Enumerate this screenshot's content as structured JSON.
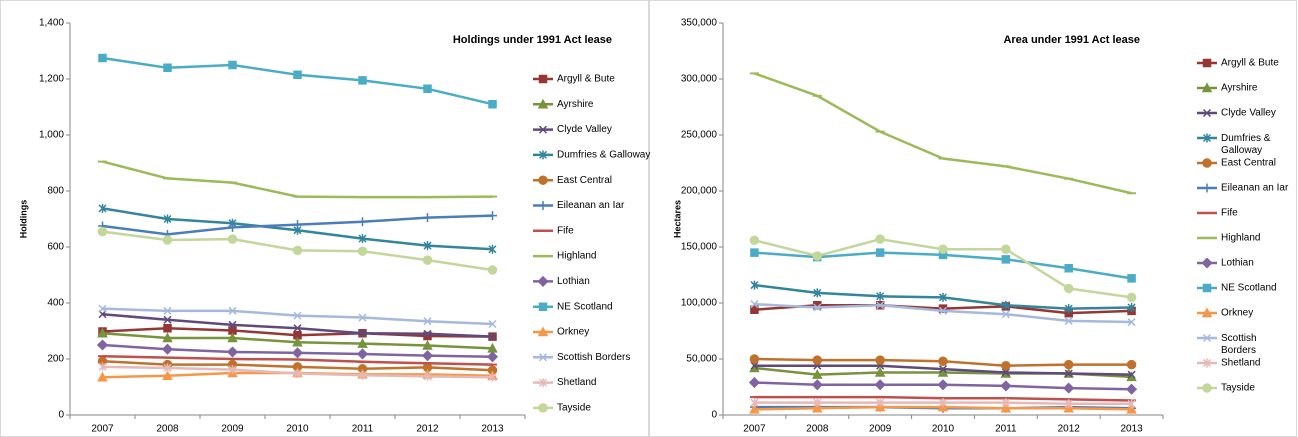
{
  "chart_data": [
    {
      "type": "line",
      "title": "Holdings under 1991 Act lease",
      "y_label": "Holdings",
      "categories": [
        "2007",
        "2008",
        "2009",
        "2010",
        "2011",
        "2012",
        "2013"
      ],
      "ylim": [
        0,
        1400
      ],
      "yticks": [
        0,
        200,
        400,
        600,
        800,
        {
          "value": 1000,
          "label": "1,000"
        },
        {
          "value": 1200,
          "label": "1,200"
        },
        {
          "value": 1400,
          "label": "1,400"
        }
      ],
      "series": [
        {
          "name": "Argyll & Bute",
          "color": "#953735",
          "marker": "square",
          "values": [
            298,
            310,
            302,
            285,
            292,
            282,
            280
          ]
        },
        {
          "name": "Ayrshire",
          "color": "#77933c",
          "marker": "triangle",
          "values": [
            292,
            275,
            275,
            260,
            255,
            248,
            238
          ]
        },
        {
          "name": "Clyde Valley",
          "color": "#604a7b",
          "marker": "x",
          "values": [
            360,
            340,
            322,
            310,
            292,
            290,
            280
          ]
        },
        {
          "name": "Dumfries & Galloway",
          "color": "#31859c",
          "marker": "star",
          "values": [
            738,
            700,
            685,
            660,
            630,
            605,
            592
          ]
        },
        {
          "name": "East Central",
          "color": "#c0722c",
          "marker": "circle",
          "values": [
            192,
            180,
            180,
            172,
            165,
            170,
            160
          ]
        },
        {
          "name": "Eileanan an Iar",
          "color": "#4a7ebb",
          "marker": "plus",
          "values": [
            675,
            645,
            670,
            680,
            690,
            705,
            712
          ]
        },
        {
          "name": "Fife",
          "color": "#c0504d",
          "marker": "dash",
          "values": [
            210,
            205,
            200,
            198,
            190,
            185,
            180
          ]
        },
        {
          "name": "Highland",
          "color": "#9bbb59",
          "marker": "dash",
          "values": [
            905,
            845,
            830,
            780,
            778,
            778,
            780
          ]
        },
        {
          "name": "Lothian",
          "color": "#8064a2",
          "marker": "diamond",
          "values": [
            250,
            235,
            225,
            222,
            218,
            212,
            208
          ]
        },
        {
          "name": "NE Scotland",
          "color": "#4bacc6",
          "marker": "square",
          "values": [
            1275,
            1240,
            1250,
            1215,
            1195,
            1165,
            1110
          ]
        },
        {
          "name": "Orkney",
          "color": "#f79646",
          "marker": "triangle",
          "values": [
            135,
            140,
            150,
            150,
            145,
            145,
            140
          ]
        },
        {
          "name": "Scottish Borders",
          "color": "#a6b9dc",
          "marker": "x",
          "values": [
            380,
            372,
            372,
            355,
            348,
            335,
            325
          ]
        },
        {
          "name": "Shetland",
          "color": "#e6b9b8",
          "marker": "star",
          "values": [
            172,
            168,
            162,
            148,
            142,
            138,
            135
          ]
        },
        {
          "name": "Tayside",
          "color": "#c3d69b",
          "marker": "circle",
          "values": [
            655,
            625,
            628,
            588,
            585,
            553,
            518
          ]
        }
      ]
    },
    {
      "type": "line",
      "title": "Area under 1991 Act lease",
      "y_label": "Hectares",
      "categories": [
        "2007",
        "2008",
        "2009",
        "2010",
        "2011",
        "2012",
        "2013"
      ],
      "ylim": [
        0,
        350000
      ],
      "yticks": [
        0,
        {
          "value": 50000,
          "label": "50,000"
        },
        {
          "value": 100000,
          "label": "100,000"
        },
        {
          "value": 150000,
          "label": "150,000"
        },
        {
          "value": 200000,
          "label": "200,000"
        },
        {
          "value": 250000,
          "label": "250,000"
        },
        {
          "value": 300000,
          "label": "300,000"
        },
        {
          "value": 350000,
          "label": "350,000"
        }
      ],
      "series": [
        {
          "name": "Argyll & Bute",
          "color": "#953735",
          "marker": "square",
          "values": [
            94000,
            98000,
            98000,
            95000,
            97000,
            91000,
            93000
          ]
        },
        {
          "name": "Ayrshire",
          "color": "#77933c",
          "marker": "triangle",
          "values": [
            42000,
            36000,
            38000,
            38000,
            37000,
            37000,
            34000
          ]
        },
        {
          "name": "Clyde Valley",
          "color": "#604a7b",
          "marker": "x",
          "values": [
            44000,
            44000,
            44000,
            41000,
            38000,
            37000,
            36000
          ]
        },
        {
          "name": "Dumfries & Galloway",
          "color": "#31859c",
          "marker": "star",
          "values": [
            116000,
            109000,
            106000,
            105000,
            98000,
            95000,
            96000
          ]
        },
        {
          "name": "East Central",
          "color": "#c0722c",
          "marker": "circle",
          "values": [
            50000,
            49000,
            49000,
            48000,
            44000,
            45000,
            45000
          ]
        },
        {
          "name": "Eileanan an Iar",
          "color": "#4a7ebb",
          "marker": "plus",
          "values": [
            7000,
            7000,
            7000,
            6000,
            6000,
            7000,
            6000
          ]
        },
        {
          "name": "Fife",
          "color": "#c0504d",
          "marker": "dash",
          "values": [
            16000,
            16000,
            16000,
            15000,
            15000,
            14000,
            13000
          ]
        },
        {
          "name": "Highland",
          "color": "#9bbb59",
          "marker": "dash",
          "values": [
            305000,
            285000,
            253000,
            229000,
            222000,
            211000,
            198000
          ]
        },
        {
          "name": "Lothian",
          "color": "#8064a2",
          "marker": "diamond",
          "values": [
            29000,
            27000,
            27000,
            27000,
            26000,
            24000,
            23000
          ]
        },
        {
          "name": "NE Scotland",
          "color": "#4bacc6",
          "marker": "square",
          "values": [
            145000,
            141000,
            145000,
            143000,
            139000,
            131000,
            122000
          ]
        },
        {
          "name": "Orkney",
          "color": "#f79646",
          "marker": "triangle",
          "values": [
            5000,
            6000,
            7000,
            7000,
            6000,
            6000,
            5000
          ]
        },
        {
          "name": "Scottish Borders",
          "color": "#a6b9dc",
          "marker": "x",
          "values": [
            99000,
            96000,
            98000,
            93000,
            90000,
            84000,
            83000
          ]
        },
        {
          "name": "Shetland",
          "color": "#e6b9b8",
          "marker": "star",
          "values": [
            11000,
            11000,
            11000,
            11000,
            11000,
            10000,
            10000
          ]
        },
        {
          "name": "Tayside",
          "color": "#c3d69b",
          "marker": "circle",
          "values": [
            156000,
            142000,
            157000,
            148000,
            148000,
            113000,
            105000
          ]
        }
      ]
    }
  ]
}
